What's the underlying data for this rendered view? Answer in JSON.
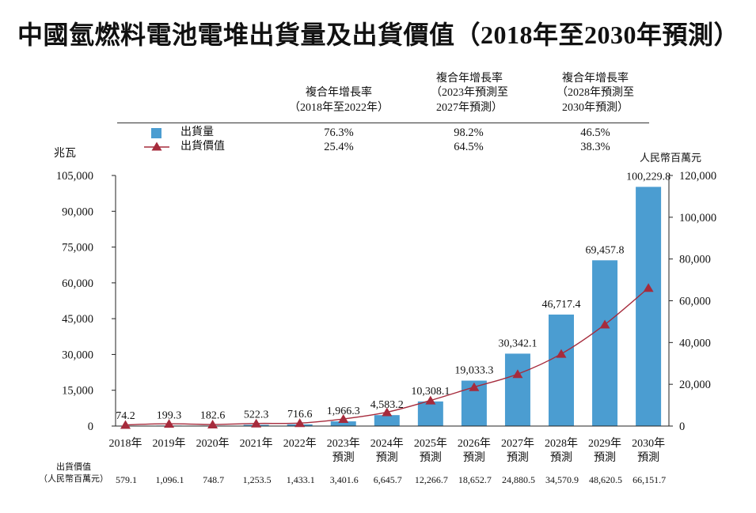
{
  "chart_data": {
    "type": "bar",
    "title": "中國氫燃料電池電堆出貨量及出貨價值（2018年至2030年預測）",
    "categories": [
      [
        "2018年"
      ],
      [
        "2019年"
      ],
      [
        "2020年"
      ],
      [
        "2021年"
      ],
      [
        "2022年"
      ],
      [
        "2023年",
        "預測"
      ],
      [
        "2024年",
        "預測"
      ],
      [
        "2025年",
        "預測"
      ],
      [
        "2026年",
        "預測"
      ],
      [
        "2027年",
        "預測"
      ],
      [
        "2028年",
        "預測"
      ],
      [
        "2029年",
        "預測"
      ],
      [
        "2030年",
        "預測"
      ]
    ],
    "series": [
      {
        "name": "出貨量",
        "type": "bar",
        "axis": "left",
        "color": "#4b9dd1",
        "values": [
          74.2,
          199.3,
          182.6,
          522.3,
          716.6,
          1966.3,
          4583.2,
          10308.1,
          19033.3,
          30342.1,
          46717.4,
          69457.8,
          100229.8
        ],
        "labels": [
          "74.2",
          "199.3",
          "182.6",
          "522.3",
          "716.6",
          "1,966.3",
          "4,583.2",
          "10,308.1",
          "19,033.3",
          "30,342.1",
          "46,717.4",
          "69,457.8",
          "100,229.8"
        ]
      },
      {
        "name": "出貨價值",
        "type": "line",
        "axis": "right",
        "marker": "triangle",
        "color": "#a62b3c",
        "values": [
          579.1,
          1096.1,
          748.7,
          1253.5,
          1433.1,
          3401.6,
          6645.7,
          12266.7,
          18652.7,
          24880.5,
          34570.9,
          48620.5,
          66151.7
        ],
        "labels": [
          "579.1",
          "1,096.1",
          "748.7",
          "1,253.5",
          "1,433.1",
          "3,401.6",
          "6,645.7",
          "12,266.7",
          "18,652.7",
          "24,880.5",
          "34,570.9",
          "48,620.5",
          "66,151.7"
        ]
      }
    ],
    "y_left": {
      "label": "兆瓦",
      "range": [
        0,
        105000
      ],
      "ticks": [
        0,
        15000,
        30000,
        45000,
        60000,
        75000,
        90000,
        105000
      ],
      "tick_labels": [
        "0",
        "15,000",
        "30,000",
        "45,000",
        "60,000",
        "75,000",
        "90,000",
        "105,000"
      ]
    },
    "y_right": {
      "label": "人民幣百萬元",
      "range": [
        0,
        120000
      ],
      "ticks": [
        0,
        20000,
        40000,
        60000,
        80000,
        100000,
        120000
      ],
      "tick_labels": [
        "0",
        "20,000",
        "40,000",
        "60,000",
        "80,000",
        "100,000",
        "120,000"
      ]
    },
    "value_table_label": [
      "出貨價值",
      "（人民幣百萬元）"
    ],
    "grid": false,
    "legend": "top-left"
  },
  "cagr_table": {
    "headers": [
      [
        "複合年增長率",
        "（2018年至2022年）"
      ],
      [
        "複合年增長率",
        "（2023年預測至",
        "2027年預測）"
      ],
      [
        "複合年增長率",
        "（2028年預測至",
        "2030年預測）"
      ]
    ],
    "rows": [
      [
        "76.3%",
        "98.2%",
        "46.5%"
      ],
      [
        "25.4%",
        "64.5%",
        "38.3%"
      ]
    ]
  }
}
